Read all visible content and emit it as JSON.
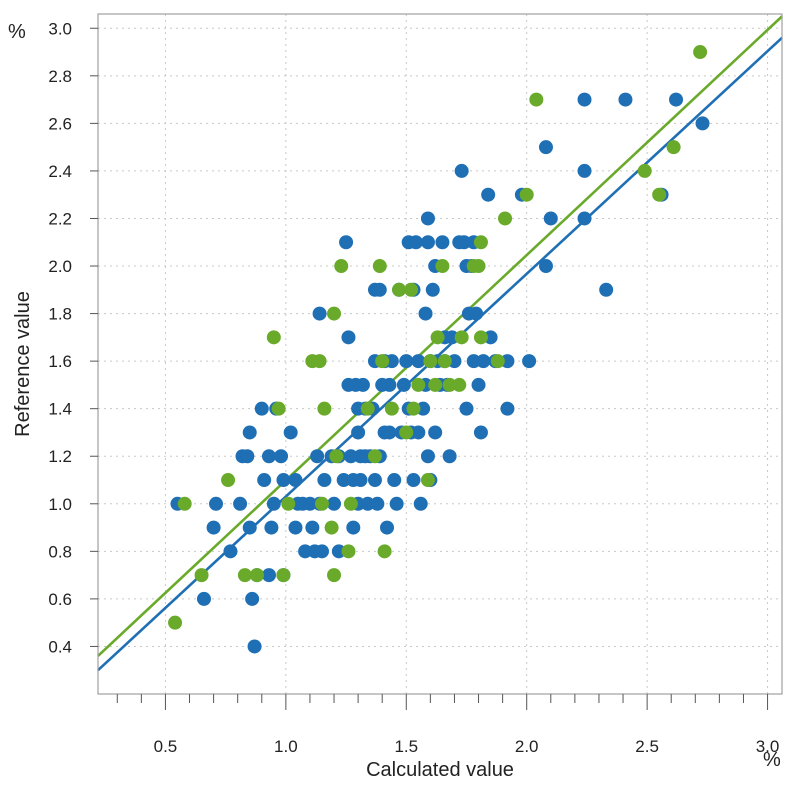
{
  "chart_data": {
    "type": "scatter",
    "title": "",
    "xlabel": "Calculated value",
    "ylabel": "Reference value",
    "x_unit": "%",
    "y_unit": "%",
    "xlim": [
      0.22,
      3.06
    ],
    "ylim": [
      0.2,
      3.06
    ],
    "xticks": [
      0.5,
      1.0,
      1.5,
      2.0,
      2.5,
      3.0
    ],
    "xtick_labels": [
      "0.5",
      "1.0",
      "1.5",
      "2.0",
      "2.5",
      "3.0"
    ],
    "yticks": [
      0.4,
      0.6,
      0.8,
      1.0,
      1.2,
      1.4,
      1.6,
      1.8,
      2.0,
      2.2,
      2.4,
      2.6,
      2.8,
      3.0
    ],
    "ytick_labels": [
      "0.4",
      "0.6",
      "0.8",
      "1.0",
      "1.2",
      "1.4",
      "1.6",
      "1.8",
      "2.0",
      "2.2",
      "2.4",
      "2.6",
      "2.8",
      "3.0"
    ],
    "grid": true,
    "legend": "none",
    "series": [
      {
        "color": "#1f6fb5",
        "points": [
          [
            0.55,
            1.0
          ],
          [
            0.66,
            0.6
          ],
          [
            0.7,
            0.9
          ],
          [
            0.71,
            1.0
          ],
          [
            0.77,
            0.8
          ],
          [
            0.81,
            1.0
          ],
          [
            0.82,
            1.2
          ],
          [
            0.84,
            1.2
          ],
          [
            0.85,
            1.3
          ],
          [
            0.85,
            0.9
          ],
          [
            0.86,
            0.6
          ],
          [
            0.87,
            0.4
          ],
          [
            0.88,
            0.7
          ],
          [
            0.9,
            1.4
          ],
          [
            0.91,
            1.1
          ],
          [
            0.93,
            1.2
          ],
          [
            0.93,
            0.7
          ],
          [
            0.94,
            0.9
          ],
          [
            0.95,
            1.0
          ],
          [
            0.96,
            1.4
          ],
          [
            0.98,
            1.2
          ],
          [
            0.99,
            1.1
          ],
          [
            0.99,
            0.7
          ],
          [
            1.02,
            1.3
          ],
          [
            1.04,
            0.9
          ],
          [
            1.04,
            1.1
          ],
          [
            1.05,
            1.0
          ],
          [
            1.07,
            1.0
          ],
          [
            1.08,
            0.8
          ],
          [
            1.1,
            1.0
          ],
          [
            1.11,
            0.9
          ],
          [
            1.12,
            0.8
          ],
          [
            1.13,
            1.2
          ],
          [
            1.14,
            1.8
          ],
          [
            1.14,
            1.0
          ],
          [
            1.15,
            0.8
          ],
          [
            1.16,
            1.1
          ],
          [
            1.19,
            1.2
          ],
          [
            1.2,
            1.0
          ],
          [
            1.22,
            1.2
          ],
          [
            1.22,
            0.8
          ],
          [
            1.24,
            1.1
          ],
          [
            1.25,
            2.1
          ],
          [
            1.26,
            1.7
          ],
          [
            1.26,
            1.5
          ],
          [
            1.27,
            1.2
          ],
          [
            1.28,
            1.1
          ],
          [
            1.28,
            0.9
          ],
          [
            1.29,
            1.5
          ],
          [
            1.3,
            1.4
          ],
          [
            1.3,
            1.3
          ],
          [
            1.3,
            1.0
          ],
          [
            1.31,
            1.2
          ],
          [
            1.31,
            1.1
          ],
          [
            1.32,
            1.5
          ],
          [
            1.33,
            1.4
          ],
          [
            1.33,
            1.2
          ],
          [
            1.34,
            1.0
          ],
          [
            1.35,
            1.2
          ],
          [
            1.36,
            1.4
          ],
          [
            1.37,
            1.9
          ],
          [
            1.37,
            1.6
          ],
          [
            1.37,
            1.1
          ],
          [
            1.38,
            1.0
          ],
          [
            1.39,
            1.9
          ],
          [
            1.39,
            1.2
          ],
          [
            1.4,
            1.5
          ],
          [
            1.41,
            1.6
          ],
          [
            1.41,
            1.3
          ],
          [
            1.42,
            0.9
          ],
          [
            1.43,
            1.5
          ],
          [
            1.43,
            1.3
          ],
          [
            1.44,
            1.6
          ],
          [
            1.45,
            1.1
          ],
          [
            1.46,
            1.0
          ],
          [
            1.47,
            1.9
          ],
          [
            1.48,
            1.3
          ],
          [
            1.49,
            1.5
          ],
          [
            1.5,
            1.6
          ],
          [
            1.51,
            2.1
          ],
          [
            1.51,
            1.4
          ],
          [
            1.52,
            1.3
          ],
          [
            1.53,
            1.9
          ],
          [
            1.53,
            1.1
          ],
          [
            1.54,
            2.1
          ],
          [
            1.55,
            1.6
          ],
          [
            1.55,
            1.3
          ],
          [
            1.56,
            1.0
          ],
          [
            1.57,
            1.4
          ],
          [
            1.58,
            1.8
          ],
          [
            1.58,
            1.5
          ],
          [
            1.59,
            2.2
          ],
          [
            1.59,
            2.1
          ],
          [
            1.59,
            1.2
          ],
          [
            1.6,
            1.6
          ],
          [
            1.6,
            1.1
          ],
          [
            1.61,
            1.9
          ],
          [
            1.62,
            2.0
          ],
          [
            1.62,
            1.3
          ],
          [
            1.63,
            1.6
          ],
          [
            1.64,
            1.5
          ],
          [
            1.65,
            2.1
          ],
          [
            1.66,
            1.7
          ],
          [
            1.66,
            1.6
          ],
          [
            1.67,
            1.5
          ],
          [
            1.68,
            1.2
          ],
          [
            1.69,
            1.7
          ],
          [
            1.7,
            1.6
          ],
          [
            1.72,
            2.1
          ],
          [
            1.73,
            2.4
          ],
          [
            1.74,
            2.1
          ],
          [
            1.75,
            2.0
          ],
          [
            1.75,
            1.4
          ],
          [
            1.76,
            1.8
          ],
          [
            1.77,
            2.0
          ],
          [
            1.78,
            2.1
          ],
          [
            1.78,
            1.6
          ],
          [
            1.79,
            1.8
          ],
          [
            1.8,
            1.5
          ],
          [
            1.81,
            1.3
          ],
          [
            1.82,
            1.6
          ],
          [
            1.84,
            2.3
          ],
          [
            1.85,
            1.7
          ],
          [
            1.87,
            1.6
          ],
          [
            1.92,
            1.6
          ],
          [
            1.92,
            1.4
          ],
          [
            1.98,
            2.3
          ],
          [
            2.01,
            1.6
          ],
          [
            2.08,
            2.5
          ],
          [
            2.08,
            2.0
          ],
          [
            2.1,
            2.2
          ],
          [
            2.24,
            2.4
          ],
          [
            2.24,
            2.7
          ],
          [
            2.24,
            2.2
          ],
          [
            2.33,
            1.9
          ],
          [
            2.41,
            2.7
          ],
          [
            2.56,
            2.3
          ],
          [
            2.62,
            2.7
          ],
          [
            2.73,
            2.6
          ]
        ]
      },
      {
        "color": "#6aaa2a",
        "points": [
          [
            0.54,
            0.5
          ],
          [
            0.58,
            1.0
          ],
          [
            0.65,
            0.7
          ],
          [
            0.76,
            1.1
          ],
          [
            0.83,
            0.7
          ],
          [
            0.88,
            0.7
          ],
          [
            0.95,
            1.7
          ],
          [
            0.97,
            1.4
          ],
          [
            0.99,
            0.7
          ],
          [
            1.01,
            1.0
          ],
          [
            1.11,
            1.6
          ],
          [
            1.14,
            1.6
          ],
          [
            1.15,
            1.0
          ],
          [
            1.16,
            1.4
          ],
          [
            1.19,
            0.9
          ],
          [
            1.2,
            1.8
          ],
          [
            1.2,
            0.7
          ],
          [
            1.21,
            1.2
          ],
          [
            1.23,
            2.0
          ],
          [
            1.26,
            0.8
          ],
          [
            1.27,
            1.0
          ],
          [
            1.34,
            1.4
          ],
          [
            1.37,
            1.2
          ],
          [
            1.39,
            2.0
          ],
          [
            1.4,
            1.6
          ],
          [
            1.41,
            0.8
          ],
          [
            1.44,
            1.4
          ],
          [
            1.47,
            1.9
          ],
          [
            1.5,
            1.3
          ],
          [
            1.52,
            1.9
          ],
          [
            1.53,
            1.4
          ],
          [
            1.55,
            1.5
          ],
          [
            1.59,
            1.1
          ],
          [
            1.6,
            1.6
          ],
          [
            1.62,
            1.5
          ],
          [
            1.63,
            1.7
          ],
          [
            1.65,
            2.0
          ],
          [
            1.66,
            1.6
          ],
          [
            1.68,
            1.5
          ],
          [
            1.72,
            1.5
          ],
          [
            1.73,
            1.7
          ],
          [
            1.78,
            2.0
          ],
          [
            1.8,
            2.0
          ],
          [
            1.81,
            2.1
          ],
          [
            1.81,
            1.7
          ],
          [
            1.88,
            1.6
          ],
          [
            1.91,
            2.2
          ],
          [
            2.0,
            2.3
          ],
          [
            2.04,
            2.7
          ],
          [
            2.49,
            2.4
          ],
          [
            2.55,
            2.3
          ],
          [
            2.61,
            2.5
          ],
          [
            2.72,
            2.9
          ]
        ]
      }
    ],
    "fit_lines": [
      {
        "color": "#1f6fb5",
        "points": [
          [
            0.22,
            0.3
          ],
          [
            3.06,
            2.96
          ]
        ]
      },
      {
        "color": "#6aaa2a",
        "points": [
          [
            0.22,
            0.36
          ],
          [
            3.06,
            3.05
          ]
        ]
      }
    ]
  }
}
